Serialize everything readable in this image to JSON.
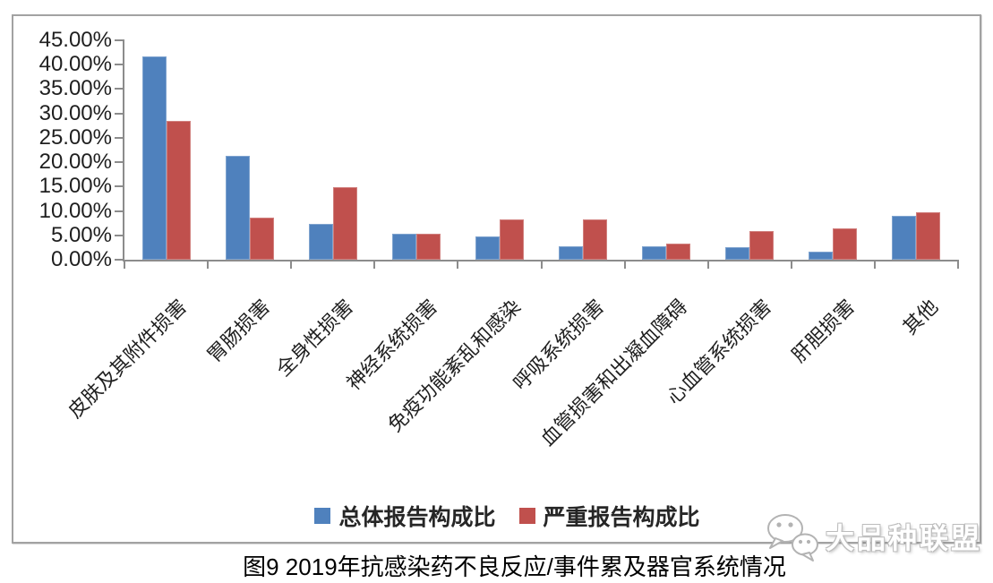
{
  "chart_data": {
    "type": "bar",
    "title": "",
    "xlabel": "",
    "ylabel": "",
    "categories": [
      "皮肤及其附件损害",
      "胃肠损害",
      "全身性损害",
      "神经系统损害",
      "免疫功能紊乱和感染",
      "呼吸系统损害",
      "血管损害和出凝血障碍",
      "心血管系统损害",
      "肝胆损害",
      "其他"
    ],
    "series": [
      {
        "name": "总体报告构成比",
        "color": "#4F81BD",
        "values": [
          41.7,
          21.3,
          7.4,
          5.4,
          4.8,
          2.8,
          2.8,
          2.5,
          1.6,
          9.0
        ]
      },
      {
        "name": "严重报告构成比",
        "color": "#C0504D",
        "values": [
          28.5,
          8.6,
          14.8,
          5.3,
          8.2,
          8.3,
          3.3,
          5.8,
          6.5,
          9.7
        ]
      }
    ],
    "ylim": [
      0,
      45
    ],
    "ytick_step": 5,
    "ytick_labels": [
      "45.00%",
      "40.00%",
      "35.00%",
      "30.00%",
      "25.00%",
      "20.00%",
      "15.00%",
      "10.00%",
      "5.00%",
      "0.00%"
    ],
    "grid": false,
    "legend_position": "bottom",
    "axis_color": "#8c8c8c"
  },
  "watermark": {
    "text": "大品种联盟",
    "icon": "wechat-chat-bubbles-icon"
  },
  "caption": "图9 2019年抗感染药不良反应/事件累及器官系统情况"
}
